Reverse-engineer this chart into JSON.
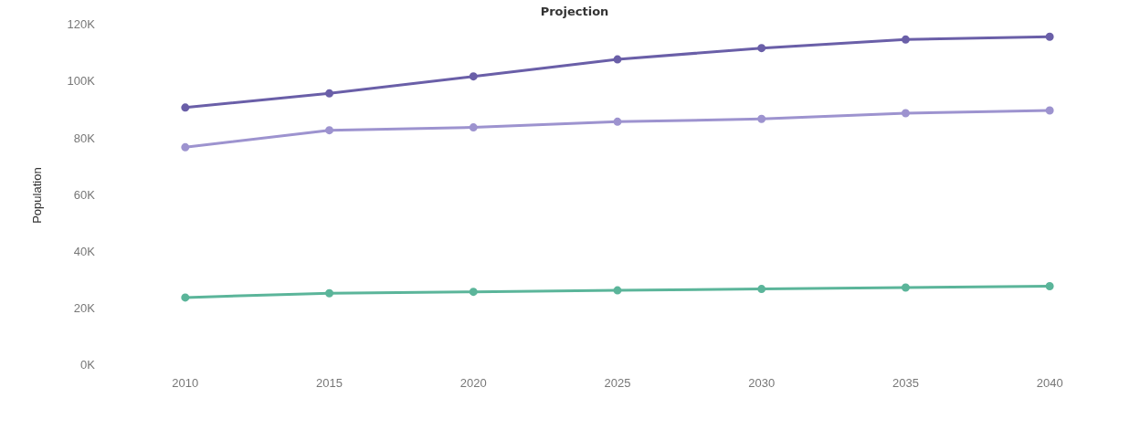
{
  "chart_data": {
    "type": "line",
    "title": "Projection",
    "ylabel": "Population",
    "categories": [
      "2010",
      "2015",
      "2020",
      "2025",
      "2030",
      "2035",
      "2040"
    ],
    "series": [
      {
        "color": "#6a5fa8",
        "values": [
          91000,
          96000,
          102000,
          108000,
          112000,
          115000,
          116000
        ]
      },
      {
        "color": "#9d93cf",
        "values": [
          77000,
          83000,
          84000,
          86000,
          87000,
          89000,
          90000
        ]
      },
      {
        "color": "#5bb59a",
        "values": [
          24000,
          25500,
          26000,
          26500,
          27000,
          27500,
          28000
        ]
      }
    ],
    "ylim": [
      0,
      120000
    ],
    "yticks": [
      {
        "value": 0,
        "label": "0K"
      },
      {
        "value": 20000,
        "label": "20K"
      },
      {
        "value": 40000,
        "label": "40K"
      },
      {
        "value": 60000,
        "label": "60K"
      },
      {
        "value": 80000,
        "label": "80K"
      },
      {
        "value": 100000,
        "label": "100K"
      },
      {
        "value": 120000,
        "label": "120K"
      }
    ],
    "marker": "circle",
    "legend": false
  }
}
